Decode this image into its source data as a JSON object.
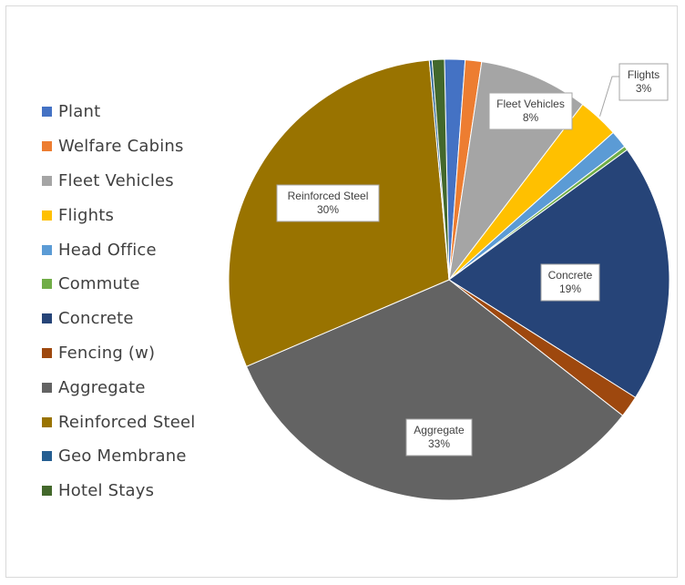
{
  "chart_data": {
    "type": "pie",
    "title": "",
    "legend_position": "left",
    "slices": [
      {
        "name": "Plant",
        "value": 1.5,
        "color": "#4472C4"
      },
      {
        "name": "Welfare Cabins",
        "value": 1.2,
        "color": "#ED7D31"
      },
      {
        "name": "Fleet Vehicles",
        "value": 8,
        "color": "#A5A5A5",
        "label": "Fleet Vehicles\n8%"
      },
      {
        "name": "Flights",
        "value": 3,
        "color": "#FFC000",
        "label": "Flights\n3%"
      },
      {
        "name": "Head Office",
        "value": 1.3,
        "color": "#5B9BD5"
      },
      {
        "name": "Commute",
        "value": 0.3,
        "color": "#70AD47"
      },
      {
        "name": "Concrete",
        "value": 19,
        "color": "#264478",
        "label": "Concrete\n19%"
      },
      {
        "name": "Fencing (w)",
        "value": 1.6,
        "color": "#9E480E"
      },
      {
        "name": "Aggregate",
        "value": 33,
        "color": "#636363",
        "label": "Aggregate\n33%"
      },
      {
        "name": "Reinforced Steel",
        "value": 30,
        "color": "#997300",
        "label": "Reinforced Steel\n30%"
      },
      {
        "name": "Geo Membrane",
        "value": 0.2,
        "color": "#255E91"
      },
      {
        "name": "Hotel Stays",
        "value": 0.9,
        "color": "#43682B"
      }
    ]
  }
}
